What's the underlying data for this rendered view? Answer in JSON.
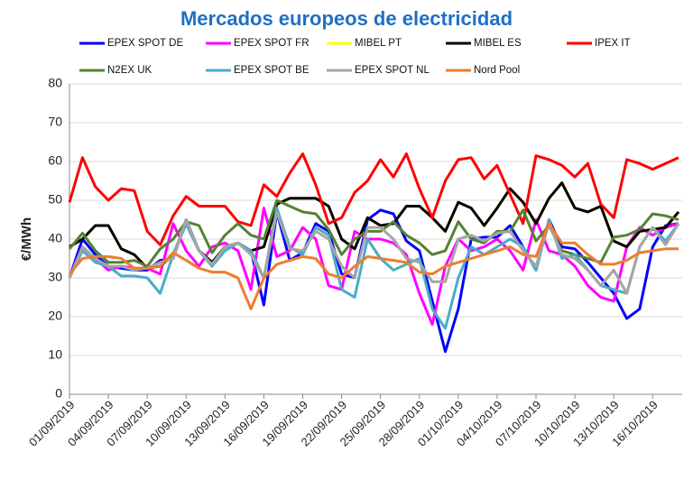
{
  "chart_data": {
    "type": "line",
    "title": "Mercados europeos de electricidad",
    "y_label": "€/MWh",
    "categories": [
      "01/09/2019",
      null,
      null,
      "04/09/2019",
      null,
      null,
      "07/09/2019",
      null,
      null,
      "10/09/2019",
      null,
      null,
      "13/09/2019",
      null,
      null,
      "16/09/2019",
      null,
      null,
      "19/09/2019",
      null,
      null,
      "22/09/2019",
      null,
      null,
      "25/09/2019",
      null,
      null,
      "28/09/2019",
      null,
      null,
      "01/10/2019",
      null,
      null,
      "04/10/2019",
      null,
      null,
      "07/10/2019",
      null,
      null,
      "10/10/2019",
      null,
      null,
      "13/10/2019",
      null,
      null,
      "16/10/2019",
      null,
      null
    ],
    "ylim": [
      0,
      80
    ],
    "yticks": [
      0,
      10,
      20,
      30,
      40,
      50,
      60,
      70,
      80
    ],
    "grid": true,
    "legend": "top",
    "series": [
      {
        "name": "EPEX SPOT DE",
        "color": "#0000ff",
        "values": [
          30,
          40,
          36,
          33,
          32.5,
          32,
          32,
          34.5,
          35,
          45,
          37,
          33.5,
          38,
          39,
          37,
          23,
          47,
          34.5,
          36.5,
          44,
          42,
          31,
          30,
          45,
          47.5,
          46.5,
          39.5,
          37,
          24,
          11,
          22,
          40,
          40.5,
          40.5,
          43.5,
          38,
          32,
          45,
          38,
          37.5,
          34,
          30,
          26,
          19.5,
          22,
          38,
          43.5,
          44
        ]
      },
      {
        "name": "EPEX SPOT FR",
        "color": "#ff00ff",
        "values": [
          30,
          38,
          35,
          32,
          33,
          32.5,
          32.5,
          31,
          44,
          37,
          33,
          38,
          39,
          37,
          27,
          48,
          35.5,
          37,
          43,
          40,
          28,
          27,
          42,
          40,
          40,
          39,
          36,
          26,
          18,
          33,
          40,
          37,
          38,
          40,
          37,
          32,
          45,
          37,
          36,
          33,
          28,
          25,
          24,
          38,
          43,
          41,
          43,
          44
        ]
      },
      {
        "name": "MIBEL PT",
        "color": "#ffff00",
        "values": [
          38,
          40,
          43.5,
          43.5,
          37.5,
          36,
          32.5,
          33,
          36,
          44,
          37,
          34,
          38,
          39,
          37,
          38,
          49,
          50.5,
          50.5,
          50.5,
          48.5,
          40,
          37.5,
          45.5,
          43.5,
          44,
          48.5,
          48.5,
          45.5,
          42,
          49.5,
          48,
          43.5,
          48,
          53,
          49.5,
          44,
          50.5,
          54.5,
          48,
          47,
          48.5,
          39.5,
          38,
          42,
          42.5,
          43,
          47
        ]
      },
      {
        "name": "MIBEL ES",
        "color": "#000000",
        "values": [
          38,
          40,
          43.5,
          43.5,
          37.5,
          36,
          32.5,
          33,
          36,
          44,
          37,
          34,
          38,
          39,
          37,
          38,
          49,
          50.5,
          50.5,
          50.5,
          48.5,
          40,
          37.5,
          45.5,
          43.5,
          44,
          48.5,
          48.5,
          45.5,
          42,
          49.5,
          48,
          43.5,
          48,
          53,
          49.5,
          44,
          50.5,
          54.5,
          48,
          47,
          48.5,
          39.5,
          38,
          42,
          42.5,
          43,
          47
        ]
      },
      {
        "name": "IPEX IT",
        "color": "#ff0000",
        "values": [
          49.5,
          61,
          53.5,
          50,
          53,
          52.5,
          42,
          38.5,
          46,
          51,
          48.5,
          48.5,
          48.5,
          44.5,
          43.5,
          54,
          51,
          57,
          62,
          54,
          44,
          45.5,
          52,
          55,
          60.5,
          56,
          62,
          53,
          45.5,
          55,
          60.5,
          61,
          55.5,
          59,
          51.5,
          44,
          61.5,
          60.5,
          59,
          56,
          59.5,
          49,
          45.5,
          60.5,
          59.5,
          58,
          59.5,
          61
        ]
      },
      {
        "name": "N2EX UK",
        "color": "#548235",
        "values": [
          37.5,
          41.5,
          37,
          34,
          34,
          34.5,
          33,
          37.5,
          40,
          44.5,
          43.5,
          36.5,
          41,
          44,
          41,
          40,
          50,
          48.5,
          47,
          46.5,
          42.5,
          36,
          40,
          42,
          42,
          44.5,
          41,
          39,
          36,
          37,
          44.5,
          40,
          39,
          42,
          42,
          47.5,
          39.5,
          43.5,
          37,
          36,
          35,
          34,
          40.5,
          41,
          42.5,
          46.5,
          46,
          45
        ]
      },
      {
        "name": "EPEX SPOT BE",
        "color": "#4bacc6",
        "values": [
          30,
          37,
          34,
          33,
          30.5,
          30.5,
          30,
          26,
          36,
          44,
          37,
          33,
          37,
          39,
          37,
          30,
          48,
          38,
          36,
          43,
          41,
          27,
          25,
          40,
          35,
          32,
          33.5,
          35,
          22,
          17,
          30,
          38,
          36,
          38,
          40,
          38,
          32,
          45,
          35,
          36,
          32,
          28,
          27,
          26,
          38,
          43,
          39.5,
          44
        ]
      },
      {
        "name": "EPEX SPOT NL",
        "color": "#a5a5a5",
        "values": [
          30,
          38,
          35,
          33,
          33,
          32,
          32.5,
          34,
          35,
          45,
          37,
          33.5,
          38,
          39,
          36,
          30,
          47,
          37.5,
          37,
          42,
          40,
          33,
          30,
          43,
          43,
          40,
          35,
          34,
          29,
          29,
          40,
          41,
          39.5,
          41.5,
          42,
          37,
          33,
          44,
          36,
          35,
          32,
          28,
          32,
          26,
          38,
          43,
          38.5,
          44
        ]
      },
      {
        "name": "Nord Pool",
        "color": "#ed7d31",
        "values": [
          31,
          35,
          35.5,
          35.5,
          35,
          32.5,
          32.5,
          33,
          36.5,
          34.5,
          32.5,
          31.5,
          31.5,
          30,
          22,
          30,
          33.5,
          34.5,
          35.5,
          35,
          31,
          30,
          33,
          35.5,
          35,
          34.5,
          34,
          31.5,
          31,
          33,
          34,
          35,
          36,
          37,
          38,
          36,
          35.5,
          44,
          39,
          39,
          36,
          33.5,
          33.5,
          34.5,
          36.5,
          37,
          37.5,
          37.5
        ]
      }
    ]
  }
}
